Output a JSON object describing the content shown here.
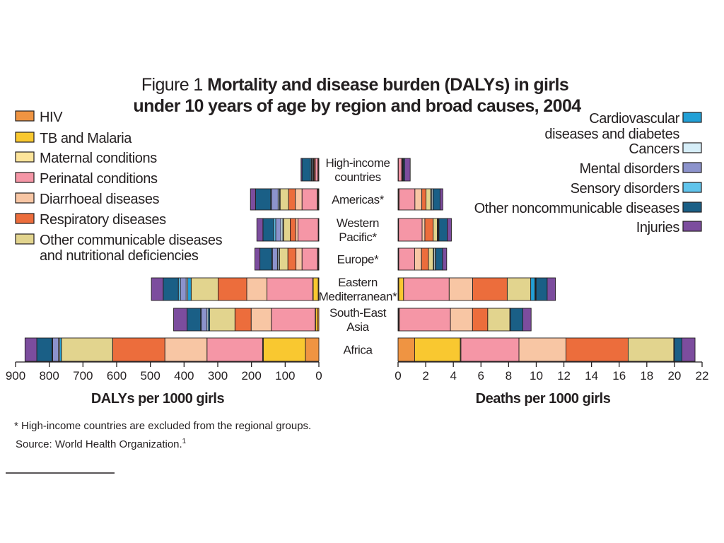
{
  "title": {
    "prefix": "Figure 1",
    "line1": "Mortality and disease burden (DALYs) in girls",
    "line2": "under 10 years of age by region and broad causes, 2004"
  },
  "legend_left": [
    {
      "lines": [
        "HIV"
      ],
      "cause": "hiv"
    },
    {
      "lines": [
        "TB and Malaria"
      ],
      "cause": "tb"
    },
    {
      "lines": [
        "Maternal conditions"
      ],
      "cause": "maternal"
    },
    {
      "lines": [
        "Perinatal conditions"
      ],
      "cause": "perinatal"
    },
    {
      "lines": [
        "Diarrhoeal diseases"
      ],
      "cause": "diarrhoeal"
    },
    {
      "lines": [
        "Respiratory diseases"
      ],
      "cause": "respiratory"
    },
    {
      "lines": [
        "Other communicable diseases",
        "and nutritional deficiencies"
      ],
      "cause": "othercomm"
    }
  ],
  "legend_right": [
    {
      "lines": [
        "Cardiovascular",
        "diseases and diabetes"
      ],
      "cause": "cardio"
    },
    {
      "lines": [
        "Cancers"
      ],
      "cause": "cancers"
    },
    {
      "lines": [
        "Mental disorders"
      ],
      "cause": "mental"
    },
    {
      "lines": [
        "Sensory disorders"
      ],
      "cause": "sensory"
    },
    {
      "lines": [
        "Other noncommunicable diseases"
      ],
      "cause": "othernon"
    },
    {
      "lines": [
        "Injuries"
      ],
      "cause": "injuries"
    }
  ],
  "colors": {
    "hiv": "#ef9442",
    "tb": "#f9c830",
    "maternal": "#fde49a",
    "perinatal": "#f596a6",
    "diarrhoeal": "#f8c6a4",
    "respiratory": "#ec6d3c",
    "othercomm": "#e2d48e",
    "cardio": "#22a0d6",
    "cancers": "#d6eef8",
    "mental": "#8c93cc",
    "sensory": "#60c4ec",
    "othernon": "#1a5f86",
    "injuries": "#7c4d9e",
    "outline": "#231f20"
  },
  "footnote": "* High-income countries are excluded from the regional groups.",
  "source": "Source: World Health Organization.",
  "source_ref": "1",
  "chart_data": [
    {
      "type": "bar",
      "orientation": "horizontal-stacked",
      "direction": "leftward",
      "xlabel": "DALYs per 1000 girls",
      "xlim": [
        0,
        900
      ],
      "xticks": [
        900,
        800,
        700,
        600,
        500,
        400,
        300,
        200,
        100,
        0
      ],
      "categories": [
        {
          "lines": [
            "High-income",
            "countries"
          ]
        },
        {
          "lines": [
            "Americas*"
          ]
        },
        {
          "lines": [
            "Western",
            "Pacific*"
          ]
        },
        {
          "lines": [
            "Europe*"
          ]
        },
        {
          "lines": [
            "Eastern",
            "Mediterranean*"
          ]
        },
        {
          "lines": [
            "South-East",
            "Asia"
          ]
        },
        {
          "lines": [
            "Africa"
          ]
        }
      ],
      "series": [
        {
          "cause": "hiv",
          "values": [
            2,
            2,
            1,
            2,
            2,
            4,
            40
          ]
        },
        {
          "cause": "tb",
          "values": [
            1,
            2,
            1,
            1,
            15,
            6,
            125
          ]
        },
        {
          "cause": "maternal",
          "values": [
            0,
            1,
            0,
            1,
            1,
            1,
            2
          ]
        },
        {
          "cause": "perinatal",
          "values": [
            8,
            45,
            60,
            46,
            136,
            130,
            165
          ]
        },
        {
          "cause": "diarrhoeal",
          "values": [
            1,
            20,
            7,
            18,
            60,
            60,
            125
          ]
        },
        {
          "cause": "respiratory",
          "values": [
            3,
            20,
            16,
            24,
            85,
            48,
            155
          ]
        },
        {
          "cause": "othercomm",
          "values": [
            1,
            25,
            20,
            25,
            80,
            75,
            152
          ]
        },
        {
          "cause": "cardio",
          "values": [
            1,
            2,
            2,
            2,
            10,
            4,
            5
          ]
        },
        {
          "cause": "cancers",
          "values": [
            3,
            4,
            6,
            4,
            5,
            4,
            4
          ]
        },
        {
          "cause": "mental",
          "values": [
            2,
            20,
            15,
            15,
            17,
            17,
            17
          ]
        },
        {
          "cause": "sensory",
          "values": [
            3,
            2,
            6,
            2,
            6,
            2,
            2
          ]
        },
        {
          "cause": "othernon",
          "values": [
            25,
            45,
            32,
            35,
            45,
            40,
            45
          ]
        },
        {
          "cause": "injuries",
          "values": [
            3,
            15,
            18,
            15,
            35,
            40,
            35
          ]
        }
      ]
    },
    {
      "type": "bar",
      "orientation": "horizontal-stacked",
      "direction": "rightward",
      "xlabel": "Deaths per 1000 girls",
      "xlim": [
        0,
        22
      ],
      "xticks": [
        0,
        2,
        4,
        6,
        8,
        10,
        12,
        14,
        16,
        18,
        20,
        22
      ],
      "categories": [
        {
          "lines": [
            "High-income",
            "countries"
          ]
        },
        {
          "lines": [
            "Americas*"
          ]
        },
        {
          "lines": [
            "Western",
            "Pacific*"
          ]
        },
        {
          "lines": [
            "Europe*"
          ]
        },
        {
          "lines": [
            "Eastern",
            "Mediterranean*"
          ]
        },
        {
          "lines": [
            "South-East",
            "Asia"
          ]
        },
        {
          "lines": [
            "Africa"
          ]
        }
      ],
      "series": [
        {
          "cause": "hiv",
          "values": [
            0.02,
            0.05,
            0.02,
            0.03,
            0.05,
            0.04,
            1.2
          ]
        },
        {
          "cause": "tb",
          "values": [
            0.0,
            0.02,
            0.02,
            0.02,
            0.35,
            0.05,
            3.3
          ]
        },
        {
          "cause": "maternal",
          "values": [
            0.0,
            0.0,
            0.0,
            0.0,
            0.0,
            0.0,
            0.05
          ]
        },
        {
          "cause": "perinatal",
          "values": [
            0.25,
            1.15,
            1.7,
            1.15,
            3.3,
            3.7,
            4.2
          ]
        },
        {
          "cause": "diarrhoeal",
          "values": [
            0.02,
            0.5,
            0.2,
            0.5,
            1.7,
            1.6,
            3.4
          ]
        },
        {
          "cause": "respiratory",
          "values": [
            0.02,
            0.3,
            0.6,
            0.5,
            2.5,
            1.1,
            4.5
          ]
        },
        {
          "cause": "othercomm",
          "values": [
            0.02,
            0.35,
            0.3,
            0.35,
            1.7,
            1.6,
            3.3
          ]
        },
        {
          "cause": "cardio",
          "values": [
            0.02,
            0.05,
            0.05,
            0.05,
            0.3,
            0.02,
            0.02
          ]
        },
        {
          "cause": "cancers",
          "values": [
            0.03,
            0.1,
            0.05,
            0.1,
            0.05,
            0.02,
            0.02
          ]
        },
        {
          "cause": "mental",
          "values": [
            0.0,
            0.02,
            0.02,
            0.02,
            0.02,
            0.0,
            0.0
          ]
        },
        {
          "cause": "sensory",
          "values": [
            0.0,
            0.0,
            0.0,
            0.0,
            0.02,
            0.0,
            0.0
          ]
        },
        {
          "cause": "othernon",
          "values": [
            0.1,
            0.5,
            0.6,
            0.5,
            0.8,
            0.9,
            0.55
          ]
        },
        {
          "cause": "injuries",
          "values": [
            0.4,
            0.2,
            0.3,
            0.3,
            0.6,
            0.6,
            0.95
          ]
        }
      ]
    }
  ]
}
